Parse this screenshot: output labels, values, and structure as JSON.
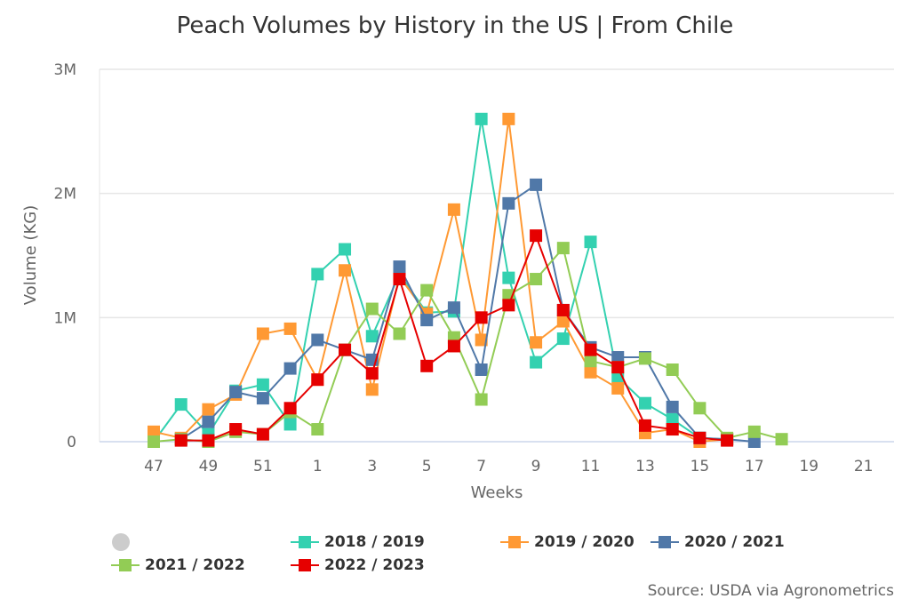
{
  "chart_data": {
    "type": "line",
    "title": "Peach Volumes by History in the US | From Chile",
    "xlabel": "Weeks",
    "ylabel": "Volume (KG)",
    "categories": [
      "47",
      "48",
      "49",
      "50",
      "51",
      "52",
      "1",
      "2",
      "3",
      "4",
      "5",
      "6",
      "7",
      "8",
      "9",
      "10",
      "11",
      "12",
      "13",
      "14",
      "15",
      "16",
      "17",
      "18",
      "19",
      "20",
      "21",
      "22"
    ],
    "x_tick_labels": [
      "47",
      "49",
      "51",
      "1",
      "3",
      "5",
      "7",
      "9",
      "11",
      "13",
      "15",
      "17",
      "19",
      "21"
    ],
    "y_tick_labels": [
      "0",
      "1M",
      "2M",
      "3M"
    ],
    "ylim": [
      0,
      3000000
    ],
    "grid": true,
    "legend": "bottom",
    "series": [
      {
        "name": "2018 / 2019",
        "color": "#33d1b0",
        "values": [
          0,
          300000,
          60000,
          410000,
          460000,
          140000,
          1350000,
          1550000,
          850000,
          1350000,
          1040000,
          1050000,
          2600000,
          1320000,
          640000,
          830000,
          1610000,
          520000,
          310000,
          180000,
          30000,
          20000,
          null,
          null,
          null,
          null,
          null,
          null
        ]
      },
      {
        "name": "2019 / 2020",
        "color": "#ff9933",
        "values": [
          80000,
          30000,
          260000,
          380000,
          870000,
          910000,
          500000,
          1380000,
          420000,
          1330000,
          1030000,
          1870000,
          820000,
          2600000,
          800000,
          970000,
          560000,
          430000,
          70000,
          100000,
          0,
          20000,
          null,
          null,
          null,
          null,
          null,
          null
        ]
      },
      {
        "name": "2020 / 2021",
        "color": "#5078a8",
        "values": [
          null,
          20000,
          160000,
          400000,
          350000,
          590000,
          820000,
          740000,
          660000,
          1410000,
          980000,
          1080000,
          580000,
          1920000,
          2070000,
          1060000,
          760000,
          680000,
          680000,
          280000,
          30000,
          20000,
          0,
          null,
          null,
          null,
          null,
          null
        ]
      },
      {
        "name": "2021 / 2022",
        "color": "#92cc55",
        "values": [
          0,
          20000,
          0,
          80000,
          60000,
          240000,
          100000,
          740000,
          1070000,
          870000,
          1220000,
          840000,
          340000,
          1180000,
          1310000,
          1560000,
          650000,
          600000,
          670000,
          580000,
          270000,
          30000,
          80000,
          20000,
          null,
          null,
          null,
          null
        ]
      },
      {
        "name": "2022 / 2023",
        "color": "#e60000",
        "values": [
          null,
          10000,
          10000,
          100000,
          60000,
          270000,
          500000,
          740000,
          550000,
          1310000,
          610000,
          770000,
          1000000,
          1100000,
          1660000,
          1060000,
          740000,
          600000,
          130000,
          100000,
          30000,
          10000,
          null,
          null,
          null,
          null,
          null,
          null
        ]
      }
    ],
    "source": "Source: USDA via Agronometrics"
  }
}
